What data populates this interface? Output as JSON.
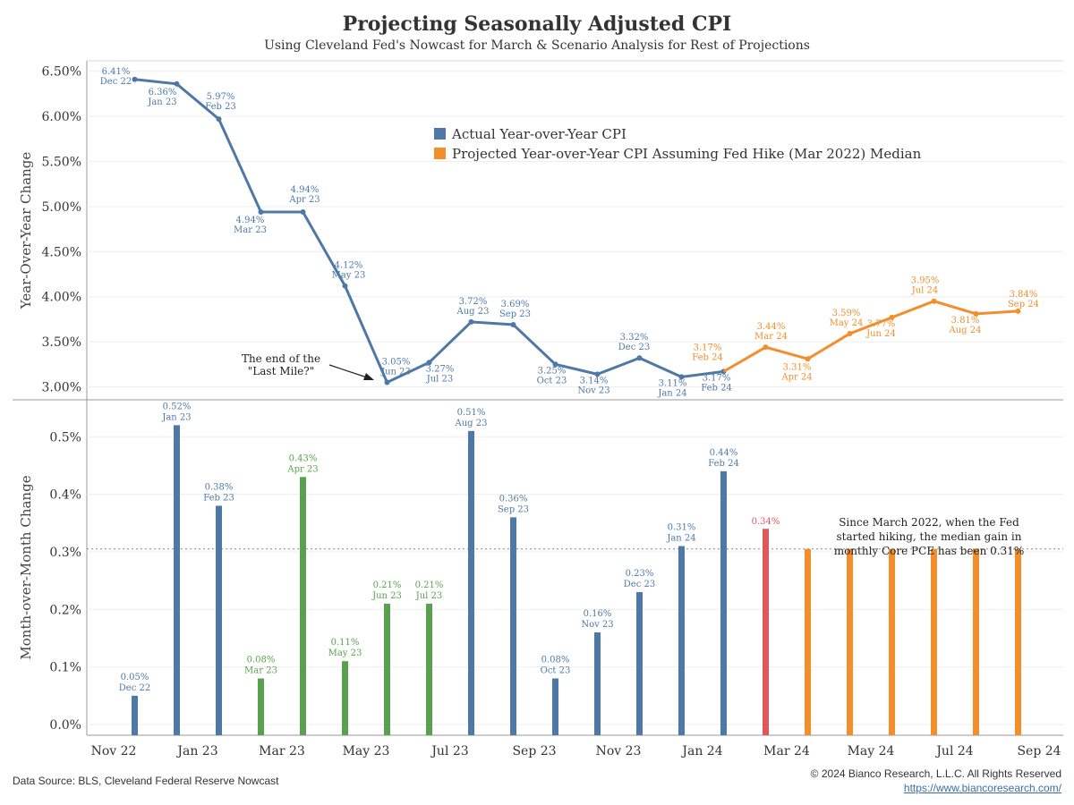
{
  "title": "Projecting Seasonally Adjusted CPI",
  "subtitle": "Using Cleveland Fed's Nowcast for March & Scenario Analysis for Rest of Projections",
  "footer": {
    "source": "Data Source: BLS, Cleveland Federal Reserve Nowcast",
    "copyright": "© 2024 Bianco Research, L.L.C. All Rights Reserved",
    "url": "https://www.biancoresearch.com/"
  },
  "colors": {
    "actual": "#4e79a7",
    "projected": "#f28e2b",
    "green": "#59a14f",
    "red": "#e15759"
  },
  "chart_data": [
    {
      "type": "line",
      "ylabel": "Year-Over-Year Change",
      "ylim": [
        2.9,
        6.6
      ],
      "yticks": [
        "3.00%",
        "3.50%",
        "4.00%",
        "4.50%",
        "5.00%",
        "5.50%",
        "6.00%",
        "6.50%"
      ],
      "grid": true,
      "legend": {
        "placement": "top-center",
        "entries": [
          "Actual Year-over-Year CPI",
          "Projected Year-over-Year CPI Assuming Fed Hike (Mar 2022) Median"
        ]
      },
      "annotation": [
        "The end of the",
        "\"Last Mile?\""
      ],
      "series": [
        {
          "name": "Actual Year-over-Year CPI",
          "points": [
            {
              "x": "Dec 22",
              "y": 6.41,
              "label": "6.41%"
            },
            {
              "x": "Jan 23",
              "y": 6.36,
              "label": "6.36%"
            },
            {
              "x": "Feb 23",
              "y": 5.97,
              "label": "5.97%"
            },
            {
              "x": "Mar 23",
              "y": 4.94,
              "label": "4.94%"
            },
            {
              "x": "Apr 23",
              "y": 4.94,
              "label": "4.94%"
            },
            {
              "x": "May 23",
              "y": 4.12,
              "label": "4.12%"
            },
            {
              "x": "Jun 23",
              "y": 3.05,
              "label": "3.05%"
            },
            {
              "x": "Jul 23",
              "y": 3.27,
              "label": "3.27%"
            },
            {
              "x": "Aug 23",
              "y": 3.72,
              "label": "3.72%"
            },
            {
              "x": "Sep 23",
              "y": 3.69,
              "label": "3.69%"
            },
            {
              "x": "Oct 23",
              "y": 3.25,
              "label": "3.25%"
            },
            {
              "x": "Nov 23",
              "y": 3.14,
              "label": "3.14%"
            },
            {
              "x": "Dec 23",
              "y": 3.32,
              "label": "3.32%"
            },
            {
              "x": "Jan 24",
              "y": 3.11,
              "label": "3.11%"
            },
            {
              "x": "Feb 24",
              "y": 3.17,
              "label": "3.17%"
            }
          ]
        },
        {
          "name": "Projected Year-over-Year CPI Assuming Fed Hike (Mar 2022) Median",
          "points": [
            {
              "x": "Feb 24",
              "y": 3.17,
              "label": "3.17%"
            },
            {
              "x": "Mar 24",
              "y": 3.44,
              "label": "3.44%"
            },
            {
              "x": "Apr 24",
              "y": 3.31,
              "label": "3.31%"
            },
            {
              "x": "May 24",
              "y": 3.59,
              "label": "3.59%"
            },
            {
              "x": "Jun 24",
              "y": 3.77,
              "label": "3.77%"
            },
            {
              "x": "Jul 24",
              "y": 3.95,
              "label": "3.95%"
            },
            {
              "x": "Aug 24",
              "y": 3.81,
              "label": "3.81%"
            },
            {
              "x": "Sep 24",
              "y": 3.84,
              "label": "3.84%"
            }
          ]
        }
      ]
    },
    {
      "type": "bar",
      "ylabel": "Month-over-Month Change",
      "ylim": [
        -0.01,
        0.56
      ],
      "yticks": [
        "0.0%",
        "0.1%",
        "0.2%",
        "0.3%",
        "0.4%",
        "0.5%"
      ],
      "reference_line": 0.305,
      "annotation": [
        "Since March 2022, when the Fed",
        "started hiking, the median gain in",
        "monthly Core PCE has been 0.31%"
      ],
      "xticks": [
        "Nov 22",
        "Jan 23",
        "Mar 23",
        "May 23",
        "Jul 23",
        "Sep 23",
        "Nov 23",
        "Jan 24",
        "Mar 24",
        "May 24",
        "Jul 24",
        "Sep 24"
      ],
      "bars": [
        {
          "x": "Dec 22",
          "y": 0.05,
          "label": "0.05%",
          "color": "blue"
        },
        {
          "x": "Jan 23",
          "y": 0.52,
          "label": "0.52%",
          "color": "blue"
        },
        {
          "x": "Feb 23",
          "y": 0.38,
          "label": "0.38%",
          "color": "blue"
        },
        {
          "x": "Mar 23",
          "y": 0.08,
          "label": "0.08%",
          "color": "green"
        },
        {
          "x": "Apr 23",
          "y": 0.43,
          "label": "0.43%",
          "color": "green"
        },
        {
          "x": "May 23",
          "y": 0.11,
          "label": "0.11%",
          "color": "green"
        },
        {
          "x": "Jun 23",
          "y": 0.21,
          "label": "0.21%",
          "color": "green"
        },
        {
          "x": "Jul 23",
          "y": 0.21,
          "label": "0.21%",
          "color": "green"
        },
        {
          "x": "Aug 23",
          "y": 0.51,
          "label": "0.51%",
          "color": "blue"
        },
        {
          "x": "Sep 23",
          "y": 0.36,
          "label": "0.36%",
          "color": "blue"
        },
        {
          "x": "Oct 23",
          "y": 0.08,
          "label": "0.08%",
          "color": "blue"
        },
        {
          "x": "Nov 23",
          "y": 0.16,
          "label": "0.16%",
          "color": "blue"
        },
        {
          "x": "Dec 23",
          "y": 0.23,
          "label": "0.23%",
          "color": "blue"
        },
        {
          "x": "Jan 24",
          "y": 0.31,
          "label": "0.31%",
          "color": "blue"
        },
        {
          "x": "Feb 24",
          "y": 0.44,
          "label": "0.44%",
          "color": "blue"
        },
        {
          "x": "Mar 24",
          "y": 0.34,
          "label": "0.34%",
          "color": "red",
          "nodate": true
        },
        {
          "x": "Apr 24",
          "y": 0.305,
          "color": "orange"
        },
        {
          "x": "May 24",
          "y": 0.305,
          "color": "orange"
        },
        {
          "x": "Jun 24",
          "y": 0.305,
          "color": "orange"
        },
        {
          "x": "Jul 24",
          "y": 0.305,
          "color": "orange"
        },
        {
          "x": "Aug 24",
          "y": 0.305,
          "color": "orange"
        },
        {
          "x": "Sep 24",
          "y": 0.305,
          "color": "orange"
        }
      ]
    }
  ]
}
